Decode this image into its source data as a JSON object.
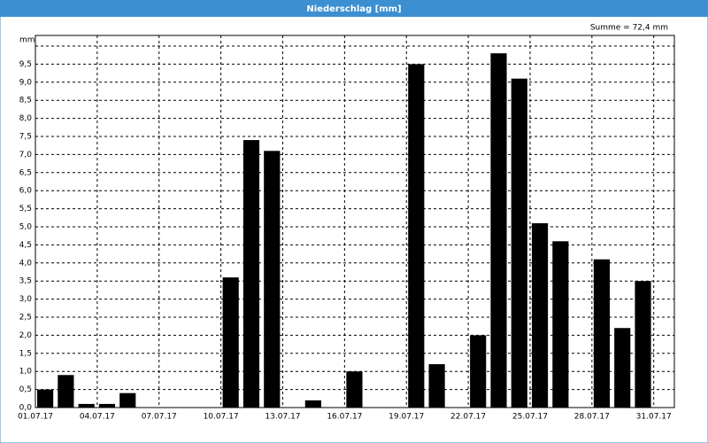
{
  "chart_data": {
    "type": "bar",
    "title": "Niederschlag [mm]",
    "annotation": "Summe = 72,4 mm",
    "y_label": "mm",
    "categories": [
      "01.07.17",
      null,
      null,
      "04.07.17",
      null,
      null,
      "07.07.17",
      null,
      null,
      "10.07.17",
      null,
      null,
      "13.07.17",
      null,
      null,
      "16.07.17",
      null,
      null,
      "19.07.17",
      null,
      null,
      "22.07.17",
      null,
      null,
      "25.07.17",
      null,
      null,
      "28.07.17",
      null,
      null,
      "31.07.17"
    ],
    "values": [
      0.5,
      0.9,
      0.1,
      0.1,
      0.4,
      0,
      0,
      0,
      0,
      3.6,
      7.4,
      7.1,
      0,
      0.2,
      0,
      1.0,
      0,
      0,
      9.5,
      1.2,
      0,
      2.0,
      9.8,
      9.1,
      5.1,
      4.6,
      0,
      4.1,
      2.2,
      3.5,
      0
    ],
    "color": "#000000",
    "ylim": [
      0,
      10
    ],
    "yticks": [
      {
        "value": 0,
        "label": "0,0"
      },
      {
        "value": 0.5,
        "label": "0,5"
      },
      {
        "value": 1,
        "label": "1,0"
      },
      {
        "value": 1.5,
        "label": "1,5"
      },
      {
        "value": 2,
        "label": "2,0"
      },
      {
        "value": 2.5,
        "label": "2,5"
      },
      {
        "value": 3,
        "label": "3,0"
      },
      {
        "value": 3.5,
        "label": "3,5"
      },
      {
        "value": 4,
        "label": "4,0"
      },
      {
        "value": 4.5,
        "label": "4,5"
      },
      {
        "value": 5,
        "label": "5,0"
      },
      {
        "value": 5.5,
        "label": "5,5"
      },
      {
        "value": 6,
        "label": "6,0"
      },
      {
        "value": 6.5,
        "label": "6,5"
      },
      {
        "value": 7,
        "label": "7,0"
      },
      {
        "value": 7.5,
        "label": "7,5"
      },
      {
        "value": 8,
        "label": "8,0"
      },
      {
        "value": 8.5,
        "label": "8,5"
      },
      {
        "value": 9,
        "label": "9,0"
      },
      {
        "value": 9.5,
        "label": "9,5"
      }
    ],
    "grid": true
  }
}
